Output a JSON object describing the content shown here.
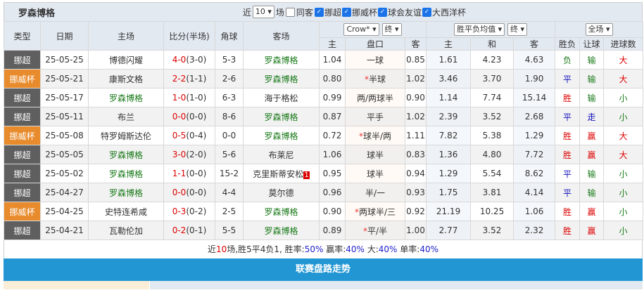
{
  "team": "罗森博格",
  "filters": {
    "recent_label": "近",
    "count": "10",
    "unit": "场",
    "same_label": "同客",
    "same_checked": false,
    "leagues": [
      {
        "label": "挪超",
        "checked": true
      },
      {
        "label": "挪威杯",
        "checked": true
      },
      {
        "label": "球会友谊",
        "checked": true
      },
      {
        "label": "大西洋杯",
        "checked": true
      }
    ]
  },
  "header": {
    "type": "类型",
    "date": "日期",
    "home": "主场",
    "score": "比分(半场)",
    "corner": "角球",
    "away": "客场",
    "company": "Crow*",
    "final1": "终",
    "odds_type": "胜平负均值",
    "final2": "终",
    "period": "全场",
    "sub": [
      "主",
      "盘口",
      "客",
      "主",
      "和",
      "客",
      "胜负",
      "让球",
      "进球数"
    ]
  },
  "colors": {
    "league_nc": "#5f5f5f",
    "league_cup": "#e88b2c",
    "team": "#1a7a1a",
    "bar": "#2196d3"
  },
  "rows": [
    {
      "type": "挪超",
      "lg": 0,
      "date": "25-05-25",
      "home": "博德闪耀",
      "ft": "4-0",
      "ht": "(3-0)",
      "corner": "5-3",
      "away": "罗森博格",
      "hw": 1.04,
      "line": "一球",
      "star": false,
      "aw": 0.85,
      "o1": "1.61",
      "ox": "4.23",
      "o2": "4.63",
      "res": "负",
      "ah": "输",
      "ou": "大",
      "homeIsTeam": false
    },
    {
      "type": "挪威杯",
      "lg": 1,
      "date": "25-05-21",
      "home": "康斯文格",
      "ft": "2-2",
      "ht": "(1-1)",
      "corner": "2-6",
      "away": "罗森博格",
      "hw": "0.80",
      "line": "半球",
      "star": true,
      "aw": "1.02",
      "o1": "3.46",
      "ox": "3.70",
      "o2": "1.90",
      "res": "平",
      "ah": "输",
      "ou": "大",
      "homeIsTeam": false
    },
    {
      "type": "挪超",
      "lg": 0,
      "date": "25-05-17",
      "home": "罗森博格",
      "ft": "1-0",
      "ht": "(1-0)",
      "corner": "6-3",
      "away": "海于格松",
      "hw": "0.99",
      "line": "两/两球半",
      "star": false,
      "aw": "0.90",
      "o1": "1.14",
      "ox": "7.74",
      "o2": "15.14",
      "res": "胜",
      "ah": "输",
      "ou": "小",
      "homeIsTeam": true
    },
    {
      "type": "挪超",
      "lg": 0,
      "date": "25-05-11",
      "home": "布兰",
      "ft": "0-0",
      "ht": "(0-0)",
      "corner": "8-6",
      "away": "罗森博格",
      "hw": "0.87",
      "line": "平手",
      "star": false,
      "aw": "1.02",
      "o1": "2.39",
      "ox": "3.52",
      "o2": "2.68",
      "res": "平",
      "ah": "走",
      "ou": "小",
      "homeIsTeam": false
    },
    {
      "type": "挪威杯",
      "lg": 1,
      "date": "25-05-08",
      "home": "特罗姆斯达伦",
      "ft": "0-5",
      "ht": "(0-4)",
      "corner": "0-0",
      "away": "罗森博格",
      "hw": "0.72",
      "line": "球半/两",
      "star": true,
      "aw": "1.11",
      "o1": "7.82",
      "ox": "5.38",
      "o2": "1.29",
      "res": "胜",
      "ah": "赢",
      "ou": "大",
      "homeIsTeam": false
    },
    {
      "type": "挪超",
      "lg": 0,
      "date": "25-05-05",
      "home": "罗森博格",
      "ft": "3-0",
      "ht": "(2-0)",
      "corner": "5-6",
      "away": "布莱尼",
      "hw": "1.06",
      "line": "球半",
      "star": false,
      "aw": "0.83",
      "o1": "1.36",
      "ox": "4.80",
      "o2": "7.72",
      "res": "胜",
      "ah": "赢",
      "ou": "大",
      "homeIsTeam": true
    },
    {
      "type": "挪超",
      "lg": 0,
      "date": "25-05-02",
      "home": "罗森博格",
      "ft": "1-1",
      "ht": "(0-0)",
      "corner": "15-2",
      "away": "克里斯蒂安松",
      "badge": "1",
      "hw": "0.95",
      "line": "球半",
      "star": false,
      "aw": "0.94",
      "o1": "1.29",
      "ox": "5.54",
      "o2": "8.62",
      "res": "平",
      "ah": "输",
      "ou": "小",
      "homeIsTeam": true
    },
    {
      "type": "挪超",
      "lg": 0,
      "date": "25-04-27",
      "home": "罗森博格",
      "ft": "0-0",
      "ht": "(0-0)",
      "corner": "4-4",
      "away": "莫尔德",
      "hw": "0.96",
      "line": "半/一",
      "star": false,
      "aw": "0.93",
      "o1": "1.75",
      "ox": "3.81",
      "o2": "4.14",
      "res": "平",
      "ah": "输",
      "ou": "小",
      "homeIsTeam": true
    },
    {
      "type": "挪威杯",
      "lg": 1,
      "date": "25-04-25",
      "home": "史特连希咸",
      "ft": "0-3",
      "ht": "(0-2)",
      "corner": "2-5",
      "away": "罗森博格",
      "hw": "0.90",
      "line": "两球半/三",
      "star": true,
      "aw": "0.92",
      "o1": "21.19",
      "ox": "10.25",
      "o2": "1.06",
      "res": "胜",
      "ah": "赢",
      "ou": "小",
      "homeIsTeam": false
    },
    {
      "type": "挪超",
      "lg": 0,
      "date": "25-04-21",
      "home": "瓦勒伦加",
      "ft": "0-2",
      "ht": "(0-1)",
      "corner": "5-5",
      "away": "罗森博格",
      "hw": "0.89",
      "line": "平/半",
      "star": true,
      "aw": "1.00",
      "o1": "2.77",
      "ox": "3.52",
      "o2": "2.32",
      "res": "胜",
      "ah": "赢",
      "ou": "小",
      "homeIsTeam": false
    }
  ],
  "summary": {
    "p1": "近",
    "n": "10",
    "p2": "场,胜5平4负1, 胜率:",
    "win": "50%",
    "p3": " 赢率:",
    "ah": "40%",
    "p4": " 大:",
    "over": "40%",
    "p5": " 单率:",
    "odd": "40%"
  },
  "section_title": "联赛盘路走势"
}
